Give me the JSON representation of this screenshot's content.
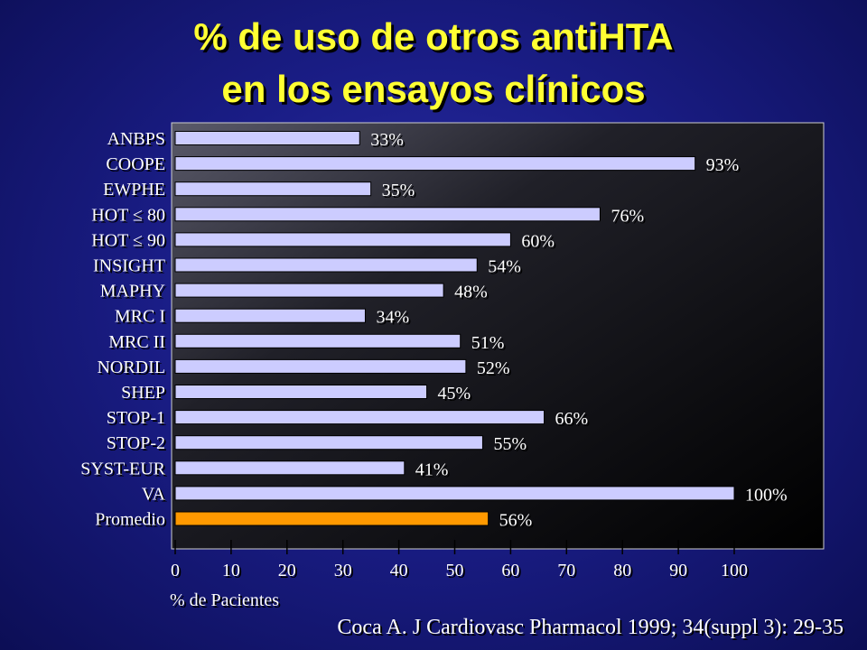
{
  "title_line1": "% de uso de otros antiHTA",
  "title_line2": "en los ensayos clínicos",
  "citation": "Coca A. J Cardiovasc Pharmacol 1999; 34(suppl 3): 29-35",
  "colors": {
    "bar": "#ccccff",
    "highlight_bar": "#ff9900",
    "plot_background": "#000000",
    "title": "#ffff33",
    "text": "#ffffff"
  },
  "chart_data": {
    "type": "bar",
    "orientation": "horizontal",
    "categories": [
      "ANBPS",
      "COOPE",
      "EWPHE",
      "HOT ≤ 80",
      "HOT ≤ 90",
      "INSIGHT",
      "MAPHY",
      "MRC I",
      "MRC II",
      "NORDIL",
      "SHEP",
      "STOP-1",
      "STOP-2",
      "SYST-EUR",
      "VA",
      "Promedio"
    ],
    "values": [
      33,
      93,
      35,
      76,
      60,
      54,
      48,
      34,
      51,
      52,
      45,
      66,
      55,
      41,
      100,
      56
    ],
    "data_labels": [
      "33%",
      "93%",
      "35%",
      "76%",
      "60%",
      "54%",
      "48%",
      "34%",
      "51%",
      "52%",
      "45%",
      "66%",
      "55%",
      "41%",
      "100%",
      "56%"
    ],
    "highlight_category": "Promedio",
    "xlabel": "% de Pacientes",
    "ylabel": "",
    "xlim": [
      0,
      100
    ],
    "xticks": [
      0,
      10,
      20,
      30,
      40,
      50,
      60,
      70,
      80,
      90,
      100
    ],
    "grid": false,
    "legend": "none"
  }
}
